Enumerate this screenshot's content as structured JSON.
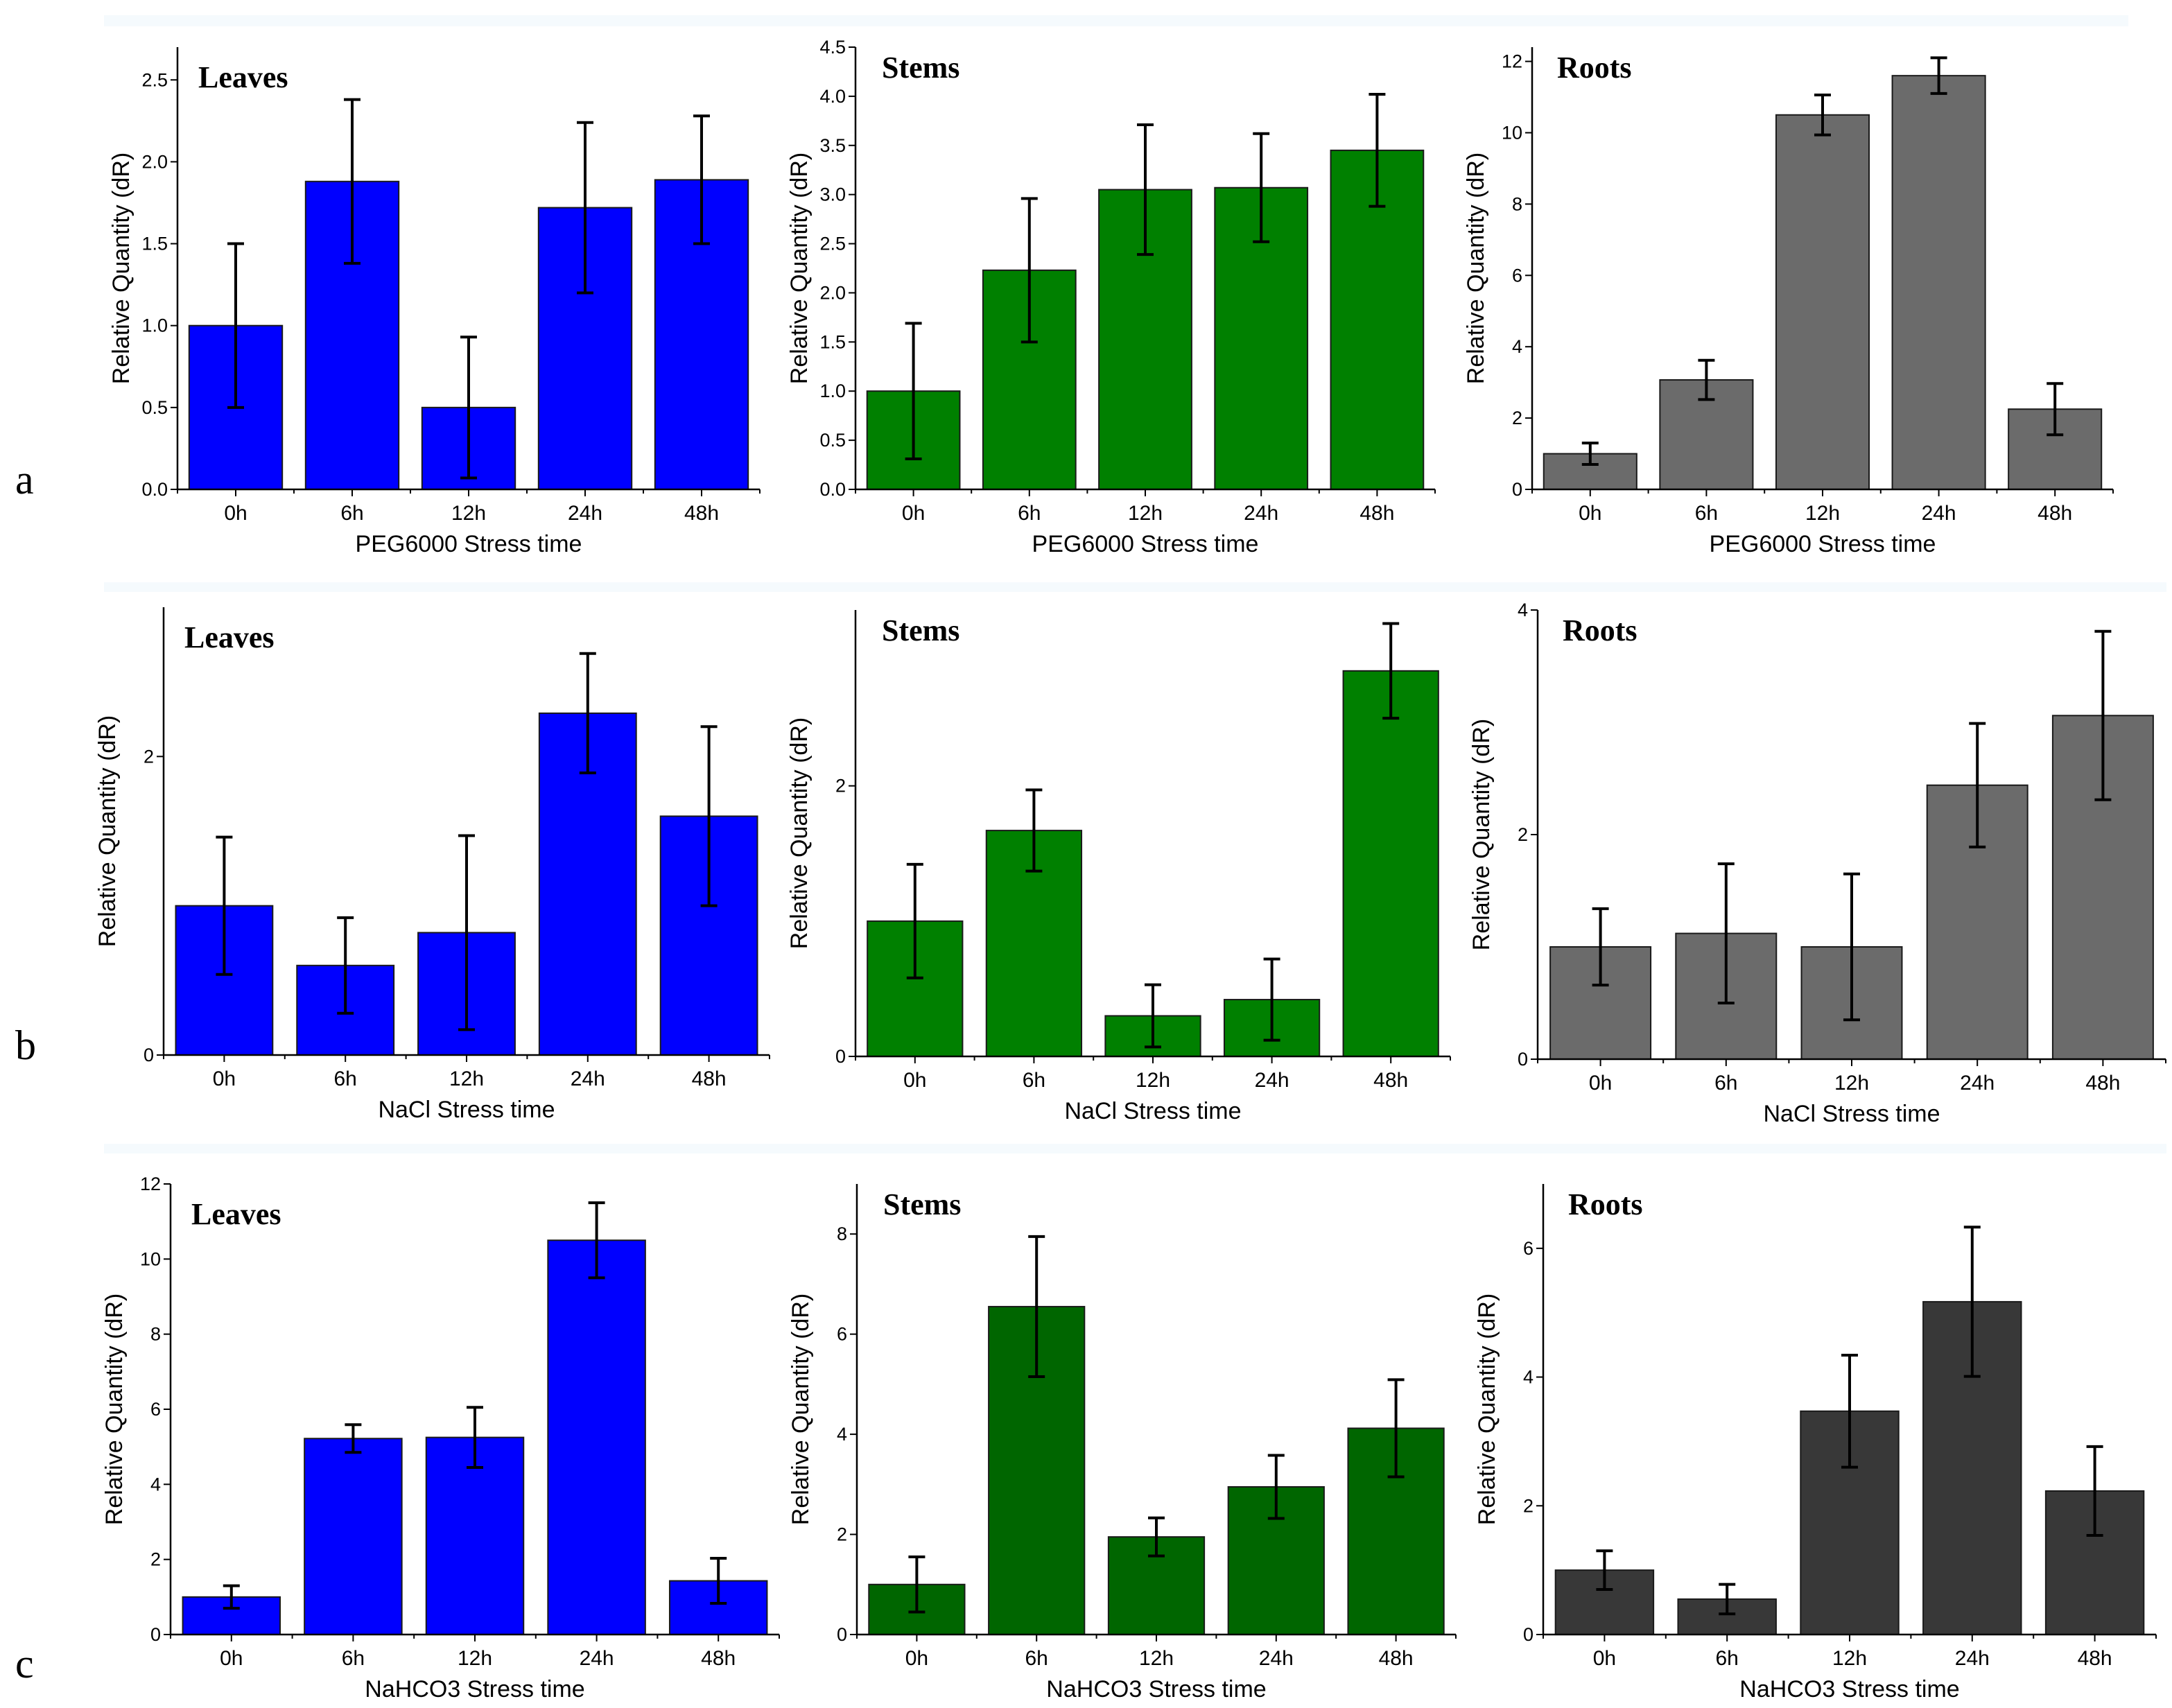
{
  "panels": [
    {
      "row": "a",
      "title": "Leaves",
      "xlabel": "PEG6000 Stress time",
      "ylabel": "Relative Quantity (dR)",
      "bar_color": "#0000ff",
      "ylim": [
        0,
        2.7
      ],
      "yticks": [
        0,
        0.5,
        1.0,
        1.5,
        2.0,
        2.5
      ],
      "categories": [
        "0h",
        "6h",
        "12h",
        "24h",
        "48h"
      ],
      "values": [
        1.0,
        1.88,
        0.5,
        1.72,
        1.89
      ],
      "errors": [
        0.5,
        0.5,
        0.43,
        0.52,
        0.39
      ]
    },
    {
      "row": "a",
      "title": "Stems",
      "xlabel": "PEG6000 Stress time",
      "ylabel": "Relative Quantity (dR)",
      "bar_color": "#008000",
      "ylim": [
        0,
        4.5
      ],
      "yticks": [
        0,
        0.5,
        1.0,
        1.5,
        2.0,
        2.5,
        3.0,
        3.5,
        4.0,
        4.5
      ],
      "categories": [
        "0h",
        "6h",
        "12h",
        "24h",
        "48h"
      ],
      "values": [
        1.0,
        2.23,
        3.05,
        3.07,
        3.45
      ],
      "errors": [
        0.69,
        0.73,
        0.66,
        0.55,
        0.57
      ]
    },
    {
      "row": "a",
      "title": "Roots",
      "xlabel": "PEG6000 Stress time",
      "ylabel": "Relative Quantity (dR)",
      "bar_color": "#6b6b6b",
      "ylim": [
        0,
        12.4
      ],
      "yticks": [
        0,
        2,
        4,
        6,
        8,
        10,
        12
      ],
      "categories": [
        "0h",
        "6h",
        "12h",
        "24h",
        "48h"
      ],
      "values": [
        1.0,
        3.07,
        10.5,
        11.6,
        2.25
      ],
      "errors": [
        0.3,
        0.55,
        0.56,
        0.5,
        0.72
      ]
    },
    {
      "row": "b",
      "title": "Leaves",
      "xlabel": "NaCl Stress time",
      "ylabel": "Relative Quantity (dR)",
      "bar_color": "#0000ff",
      "ylim": [
        0,
        3.0
      ],
      "yticks": [
        0,
        2
      ],
      "categories": [
        "0h",
        "6h",
        "12h",
        "24h",
        "48h"
      ],
      "values": [
        1.0,
        0.6,
        0.82,
        2.29,
        1.6
      ],
      "errors": [
        0.46,
        0.32,
        0.65,
        0.4,
        0.6
      ]
    },
    {
      "row": "b",
      "title": "Stems",
      "xlabel": "NaCl Stress time",
      "ylabel": "Relative Quantity (dR)",
      "bar_color": "#008000",
      "ylim": [
        0,
        3.3
      ],
      "yticks": [
        0,
        2
      ],
      "categories": [
        "0h",
        "6h",
        "12h",
        "24h",
        "48h"
      ],
      "values": [
        1.0,
        1.67,
        0.3,
        0.42,
        2.85
      ],
      "errors": [
        0.42,
        0.3,
        0.23,
        0.3,
        0.35
      ]
    },
    {
      "row": "b",
      "title": "Roots",
      "xlabel": "NaCl Stress time",
      "ylabel": "Relative Quantity (dR)",
      "bar_color": "#6b6b6b",
      "ylim": [
        0,
        4.0
      ],
      "yticks": [
        0,
        2,
        4
      ],
      "categories": [
        "0h",
        "6h",
        "12h",
        "24h",
        "48h"
      ],
      "values": [
        1.0,
        1.12,
        1.0,
        2.44,
        3.06
      ],
      "errors": [
        0.34,
        0.62,
        0.65,
        0.55,
        0.75
      ]
    },
    {
      "row": "c",
      "title": "Leaves",
      "xlabel": "NaHCO3 Stress time",
      "ylabel": "Relative Quantity (dR)",
      "bar_color": "#0000ff",
      "ylim": [
        0,
        12
      ],
      "yticks": [
        0,
        2,
        4,
        6,
        8,
        10,
        12
      ],
      "categories": [
        "0h",
        "6h",
        "12h",
        "24h",
        "48h"
      ],
      "values": [
        1.0,
        5.22,
        5.25,
        10.5,
        1.43
      ],
      "errors": [
        0.3,
        0.37,
        0.8,
        1.0,
        0.6
      ]
    },
    {
      "row": "c",
      "title": "Stems",
      "xlabel": "NaHCO3 Stress time",
      "ylabel": "Relative Quantity (dR)",
      "bar_color": "#006600",
      "ylim": [
        0,
        9.0
      ],
      "yticks": [
        0,
        2,
        4,
        6,
        8
      ],
      "categories": [
        "0h",
        "6h",
        "12h",
        "24h",
        "48h"
      ],
      "values": [
        1.0,
        6.55,
        1.95,
        2.95,
        4.12
      ],
      "errors": [
        0.55,
        1.4,
        0.38,
        0.63,
        0.97
      ]
    },
    {
      "row": "c",
      "title": "Roots",
      "xlabel": "NaHCO3 Stress time",
      "ylabel": "Relative Quantity (dR)",
      "bar_color": "#383838",
      "ylim": [
        0,
        7.0
      ],
      "yticks": [
        0,
        2,
        4,
        6
      ],
      "categories": [
        "0h",
        "6h",
        "12h",
        "24h",
        "48h"
      ],
      "values": [
        1.0,
        0.55,
        3.47,
        5.17,
        2.23
      ],
      "errors": [
        0.3,
        0.23,
        0.87,
        1.16,
        0.69
      ]
    }
  ],
  "chart_data": [
    {
      "type": "bar",
      "title": "Leaves",
      "xlabel": "PEG6000 Stress time",
      "ylabel": "Relative Quantity (dR)",
      "categories": [
        "0h",
        "6h",
        "12h",
        "24h",
        "48h"
      ],
      "values": [
        1.0,
        1.88,
        0.5,
        1.72,
        1.89
      ],
      "errors": [
        0.5,
        0.5,
        0.43,
        0.52,
        0.39
      ],
      "ylim": [
        0,
        2.7
      ]
    },
    {
      "type": "bar",
      "title": "Stems",
      "xlabel": "PEG6000 Stress time",
      "ylabel": "Relative Quantity (dR)",
      "categories": [
        "0h",
        "6h",
        "12h",
        "24h",
        "48h"
      ],
      "values": [
        1.0,
        2.23,
        3.05,
        3.07,
        3.45
      ],
      "errors": [
        0.69,
        0.73,
        0.66,
        0.55,
        0.57
      ],
      "ylim": [
        0,
        4.5
      ]
    },
    {
      "type": "bar",
      "title": "Roots",
      "xlabel": "PEG6000 Stress time",
      "ylabel": "Relative Quantity (dR)",
      "categories": [
        "0h",
        "6h",
        "12h",
        "24h",
        "48h"
      ],
      "values": [
        1.0,
        3.07,
        10.5,
        11.6,
        2.25
      ],
      "errors": [
        0.3,
        0.55,
        0.56,
        0.5,
        0.72
      ],
      "ylim": [
        0,
        12.4
      ]
    },
    {
      "type": "bar",
      "title": "Leaves",
      "xlabel": "NaCl Stress time",
      "ylabel": "Relative Quantity (dR)",
      "categories": [
        "0h",
        "6h",
        "12h",
        "24h",
        "48h"
      ],
      "values": [
        1.0,
        0.6,
        0.82,
        2.29,
        1.6
      ],
      "errors": [
        0.46,
        0.32,
        0.65,
        0.4,
        0.6
      ],
      "ylim": [
        0,
        3.0
      ]
    },
    {
      "type": "bar",
      "title": "Stems",
      "xlabel": "NaCl Stress time",
      "ylabel": "Relative Quantity (dR)",
      "categories": [
        "0h",
        "6h",
        "12h",
        "24h",
        "48h"
      ],
      "values": [
        1.0,
        1.67,
        0.3,
        0.42,
        2.85
      ],
      "errors": [
        0.42,
        0.3,
        0.23,
        0.3,
        0.35
      ],
      "ylim": [
        0,
        3.3
      ]
    },
    {
      "type": "bar",
      "title": "Roots",
      "xlabel": "NaCl Stress time",
      "ylabel": "Relative Quantity (dR)",
      "categories": [
        "0h",
        "6h",
        "12h",
        "24h",
        "48h"
      ],
      "values": [
        1.0,
        1.12,
        1.0,
        2.44,
        3.06
      ],
      "errors": [
        0.34,
        0.62,
        0.65,
        0.55,
        0.75
      ],
      "ylim": [
        0,
        4.0
      ]
    },
    {
      "type": "bar",
      "title": "Leaves",
      "xlabel": "NaHCO3 Stress time",
      "ylabel": "Relative Quantity (dR)",
      "categories": [
        "0h",
        "6h",
        "12h",
        "24h",
        "48h"
      ],
      "values": [
        1.0,
        5.22,
        5.25,
        10.5,
        1.43
      ],
      "errors": [
        0.3,
        0.37,
        0.8,
        1.0,
        0.6
      ],
      "ylim": [
        0,
        12
      ]
    },
    {
      "type": "bar",
      "title": "Stems",
      "xlabel": "NaHCO3 Stress time",
      "ylabel": "Relative Quantity (dR)",
      "categories": [
        "0h",
        "6h",
        "12h",
        "24h",
        "48h"
      ],
      "values": [
        1.0,
        6.55,
        1.95,
        2.95,
        4.12
      ],
      "errors": [
        0.55,
        1.4,
        0.38,
        0.63,
        0.97
      ],
      "ylim": [
        0,
        9.0
      ]
    },
    {
      "type": "bar",
      "title": "Roots",
      "xlabel": "NaHCO3 Stress time",
      "ylabel": "Relative Quantity (dR)",
      "categories": [
        "0h",
        "6h",
        "12h",
        "24h",
        "48h"
      ],
      "values": [
        1.0,
        0.55,
        3.47,
        5.17,
        2.23
      ],
      "errors": [
        0.3,
        0.23,
        0.87,
        1.16,
        0.69
      ],
      "ylim": [
        0,
        7.0
      ]
    }
  ]
}
